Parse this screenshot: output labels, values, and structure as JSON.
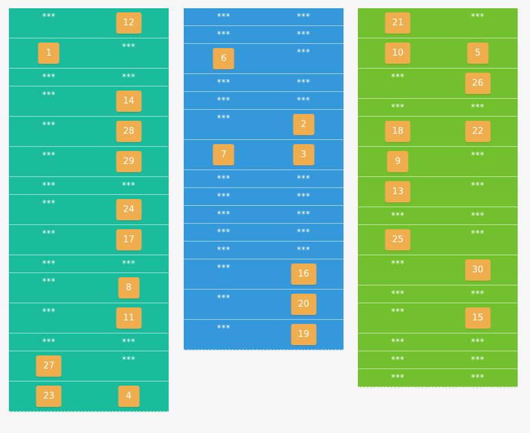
{
  "colors": {
    "background": "#f6f6f6",
    "tile": "#f0ad4e",
    "col1": "#1abc9c",
    "col2": "#3498db",
    "col3": "#73c02f",
    "text": "#ffffff"
  },
  "hidden_label": "***",
  "columns": [
    {
      "name": "column-1",
      "color": "#1abc9c",
      "rows": [
        {
          "tall": true,
          "cells": [
            {
              "type": "hidden"
            },
            {
              "type": "tile",
              "value": "12"
            }
          ]
        },
        {
          "tall": true,
          "cells": [
            {
              "type": "tile",
              "value": "1"
            },
            {
              "type": "hidden"
            }
          ]
        },
        {
          "tall": false,
          "cells": [
            {
              "type": "hidden"
            },
            {
              "type": "hidden"
            }
          ]
        },
        {
          "tall": true,
          "cells": [
            {
              "type": "hidden"
            },
            {
              "type": "tile",
              "value": "14"
            }
          ]
        },
        {
          "tall": true,
          "cells": [
            {
              "type": "hidden"
            },
            {
              "type": "tile",
              "value": "28"
            }
          ]
        },
        {
          "tall": true,
          "cells": [
            {
              "type": "hidden"
            },
            {
              "type": "tile",
              "value": "29"
            }
          ]
        },
        {
          "tall": false,
          "cells": [
            {
              "type": "hidden"
            },
            {
              "type": "hidden"
            }
          ]
        },
        {
          "tall": true,
          "cells": [
            {
              "type": "hidden"
            },
            {
              "type": "tile",
              "value": "24"
            }
          ]
        },
        {
          "tall": true,
          "cells": [
            {
              "type": "hidden"
            },
            {
              "type": "tile",
              "value": "17"
            }
          ]
        },
        {
          "tall": false,
          "cells": [
            {
              "type": "hidden"
            },
            {
              "type": "hidden"
            }
          ]
        },
        {
          "tall": true,
          "cells": [
            {
              "type": "hidden"
            },
            {
              "type": "tile",
              "value": "8"
            }
          ]
        },
        {
          "tall": true,
          "cells": [
            {
              "type": "hidden"
            },
            {
              "type": "tile",
              "value": "11"
            }
          ]
        },
        {
          "tall": false,
          "cells": [
            {
              "type": "hidden"
            },
            {
              "type": "hidden"
            }
          ]
        },
        {
          "tall": true,
          "cells": [
            {
              "type": "tile",
              "value": "27"
            },
            {
              "type": "hidden"
            }
          ]
        },
        {
          "tall": true,
          "cells": [
            {
              "type": "tile",
              "value": "23"
            },
            {
              "type": "tile",
              "value": "4"
            }
          ]
        }
      ]
    },
    {
      "name": "column-2",
      "color": "#3498db",
      "rows": [
        {
          "tall": false,
          "cells": [
            {
              "type": "hidden"
            },
            {
              "type": "hidden"
            }
          ]
        },
        {
          "tall": false,
          "cells": [
            {
              "type": "hidden"
            },
            {
              "type": "hidden"
            }
          ]
        },
        {
          "tall": true,
          "cells": [
            {
              "type": "tile",
              "value": "6"
            },
            {
              "type": "hidden"
            }
          ]
        },
        {
          "tall": false,
          "cells": [
            {
              "type": "hidden"
            },
            {
              "type": "hidden"
            }
          ]
        },
        {
          "tall": false,
          "cells": [
            {
              "type": "hidden"
            },
            {
              "type": "hidden"
            }
          ]
        },
        {
          "tall": true,
          "cells": [
            {
              "type": "hidden"
            },
            {
              "type": "tile",
              "value": "2"
            }
          ]
        },
        {
          "tall": true,
          "cells": [
            {
              "type": "tile",
              "value": "7"
            },
            {
              "type": "tile",
              "value": "3"
            }
          ]
        },
        {
          "tall": false,
          "cells": [
            {
              "type": "hidden"
            },
            {
              "type": "hidden"
            }
          ]
        },
        {
          "tall": false,
          "cells": [
            {
              "type": "hidden"
            },
            {
              "type": "hidden"
            }
          ]
        },
        {
          "tall": false,
          "cells": [
            {
              "type": "hidden"
            },
            {
              "type": "hidden"
            }
          ]
        },
        {
          "tall": false,
          "cells": [
            {
              "type": "hidden"
            },
            {
              "type": "hidden"
            }
          ]
        },
        {
          "tall": false,
          "cells": [
            {
              "type": "hidden"
            },
            {
              "type": "hidden"
            }
          ]
        },
        {
          "tall": true,
          "cells": [
            {
              "type": "hidden"
            },
            {
              "type": "tile",
              "value": "16"
            }
          ]
        },
        {
          "tall": true,
          "cells": [
            {
              "type": "hidden"
            },
            {
              "type": "tile",
              "value": "20"
            }
          ]
        },
        {
          "tall": true,
          "cells": [
            {
              "type": "hidden"
            },
            {
              "type": "tile",
              "value": "19"
            }
          ]
        }
      ]
    },
    {
      "name": "column-3",
      "color": "#73c02f",
      "rows": [
        {
          "tall": true,
          "cells": [
            {
              "type": "tile",
              "value": "21"
            },
            {
              "type": "hidden"
            }
          ]
        },
        {
          "tall": true,
          "cells": [
            {
              "type": "tile",
              "value": "10"
            },
            {
              "type": "tile",
              "value": "5"
            }
          ]
        },
        {
          "tall": true,
          "cells": [
            {
              "type": "hidden"
            },
            {
              "type": "tile",
              "value": "26"
            }
          ]
        },
        {
          "tall": false,
          "cells": [
            {
              "type": "hidden"
            },
            {
              "type": "hidden"
            }
          ]
        },
        {
          "tall": true,
          "cells": [
            {
              "type": "tile",
              "value": "18"
            },
            {
              "type": "tile",
              "value": "22"
            }
          ]
        },
        {
          "tall": true,
          "cells": [
            {
              "type": "tile",
              "value": "9"
            },
            {
              "type": "hidden"
            }
          ]
        },
        {
          "tall": true,
          "cells": [
            {
              "type": "tile",
              "value": "13"
            },
            {
              "type": "hidden"
            }
          ]
        },
        {
          "tall": false,
          "cells": [
            {
              "type": "hidden"
            },
            {
              "type": "hidden"
            }
          ]
        },
        {
          "tall": true,
          "cells": [
            {
              "type": "tile",
              "value": "25"
            },
            {
              "type": "hidden"
            }
          ]
        },
        {
          "tall": true,
          "cells": [
            {
              "type": "hidden"
            },
            {
              "type": "tile",
              "value": "30"
            }
          ]
        },
        {
          "tall": false,
          "cells": [
            {
              "type": "hidden"
            },
            {
              "type": "hidden"
            }
          ]
        },
        {
          "tall": true,
          "cells": [
            {
              "type": "hidden"
            },
            {
              "type": "tile",
              "value": "15"
            }
          ]
        },
        {
          "tall": false,
          "cells": [
            {
              "type": "hidden"
            },
            {
              "type": "hidden"
            }
          ]
        },
        {
          "tall": false,
          "cells": [
            {
              "type": "hidden"
            },
            {
              "type": "hidden"
            }
          ]
        },
        {
          "tall": false,
          "cells": [
            {
              "type": "hidden"
            },
            {
              "type": "hidden"
            }
          ]
        }
      ]
    }
  ]
}
